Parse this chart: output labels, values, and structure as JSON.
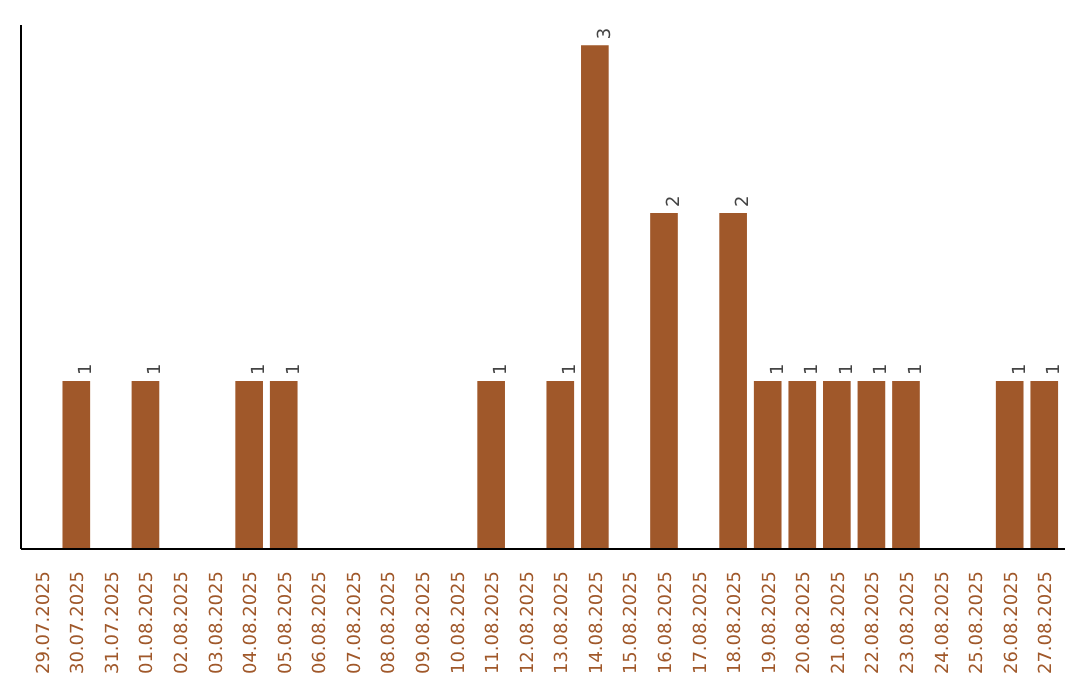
{
  "chart_data": {
    "type": "bar",
    "categories": [
      "29.07.2025",
      "30.07.2025",
      "31.07.2025",
      "01.08.2025",
      "02.08.2025",
      "03.08.2025",
      "04.08.2025",
      "05.08.2025",
      "06.08.2025",
      "07.08.2025",
      "08.08.2025",
      "09.08.2025",
      "10.08.2025",
      "11.08.2025",
      "12.08.2025",
      "13.08.2025",
      "14.08.2025",
      "15.08.2025",
      "16.08.2025",
      "17.08.2025",
      "18.08.2025",
      "19.08.2025",
      "20.08.2025",
      "21.08.2025",
      "22.08.2025",
      "23.08.2025",
      "24.08.2025",
      "25.08.2025",
      "26.08.2025",
      "27.08.2025"
    ],
    "values": [
      0,
      1,
      0,
      1,
      0,
      0,
      1,
      1,
      0,
      0,
      0,
      0,
      0,
      1,
      0,
      1,
      3,
      0,
      2,
      0,
      2,
      1,
      1,
      1,
      1,
      1,
      0,
      0,
      1,
      1
    ],
    "value_labels": [
      null,
      "1",
      null,
      "1",
      null,
      null,
      "1",
      "1",
      null,
      null,
      null,
      null,
      null,
      "1",
      null,
      "1",
      "3",
      null,
      "2",
      null,
      "2",
      "1",
      "1",
      "1",
      "1",
      "1",
      null,
      null,
      "1",
      "1"
    ],
    "color": "#a0582a",
    "grid": false,
    "tick_labels": "x"
  }
}
